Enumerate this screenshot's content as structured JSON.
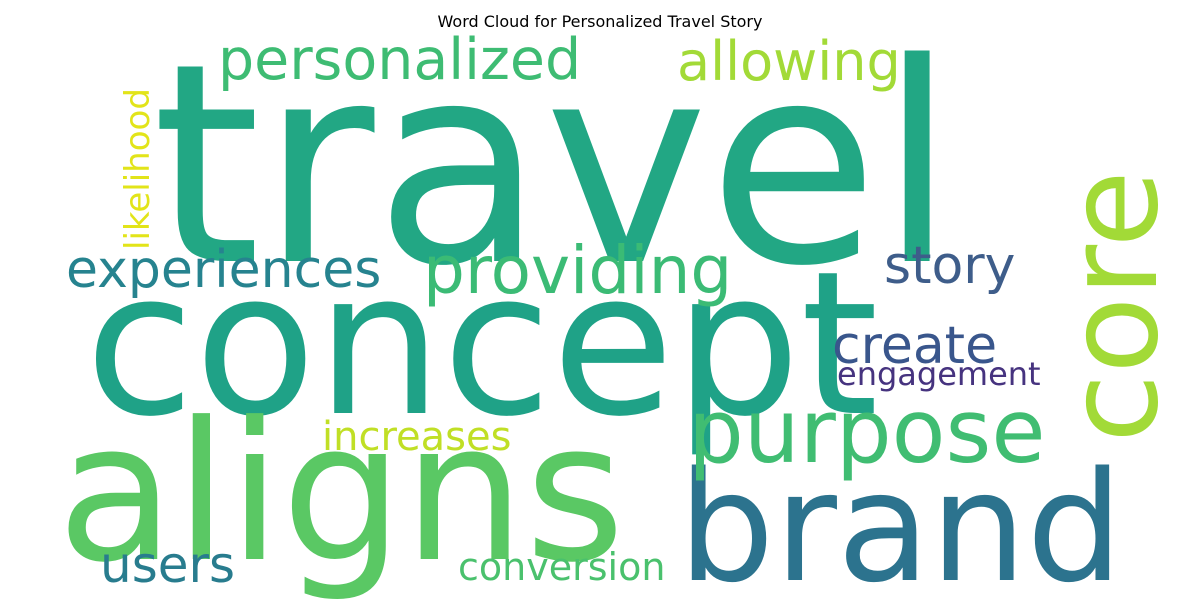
{
  "title": "Word Cloud for Personalized Travel Story",
  "words": {
    "travel": {
      "text": "travel",
      "color": "#22a784"
    },
    "concept": {
      "text": "concept",
      "color": "#1fa287"
    },
    "aligns": {
      "text": "aligns",
      "color": "#5ac864"
    },
    "brand": {
      "text": "brand",
      "color": "#2c738e"
    },
    "core": {
      "text": "core",
      "color": "#a2da37"
    },
    "purpose": {
      "text": "purpose",
      "color": "#40bd72"
    },
    "personalized": {
      "text": "personalized",
      "color": "#3ebc73"
    },
    "allowing": {
      "text": "allowing",
      "color": "#a2da37"
    },
    "providing": {
      "text": "providing",
      "color": "#3bbb75"
    },
    "experiences": {
      "text": "experiences",
      "color": "#26838f"
    },
    "story": {
      "text": "story",
      "color": "#3e5d8a"
    },
    "create": {
      "text": "create",
      "color": "#39568c"
    },
    "engagement": {
      "text": "engagement",
      "color": "#46337f"
    },
    "increases": {
      "text": "increases",
      "color": "#c0df25"
    },
    "likelihood": {
      "text": "likelihood",
      "color": "#e2e419"
    },
    "users": {
      "text": "users",
      "color": "#287c8e"
    },
    "conversion": {
      "text": "conversion",
      "color": "#4ac16d"
    }
  }
}
